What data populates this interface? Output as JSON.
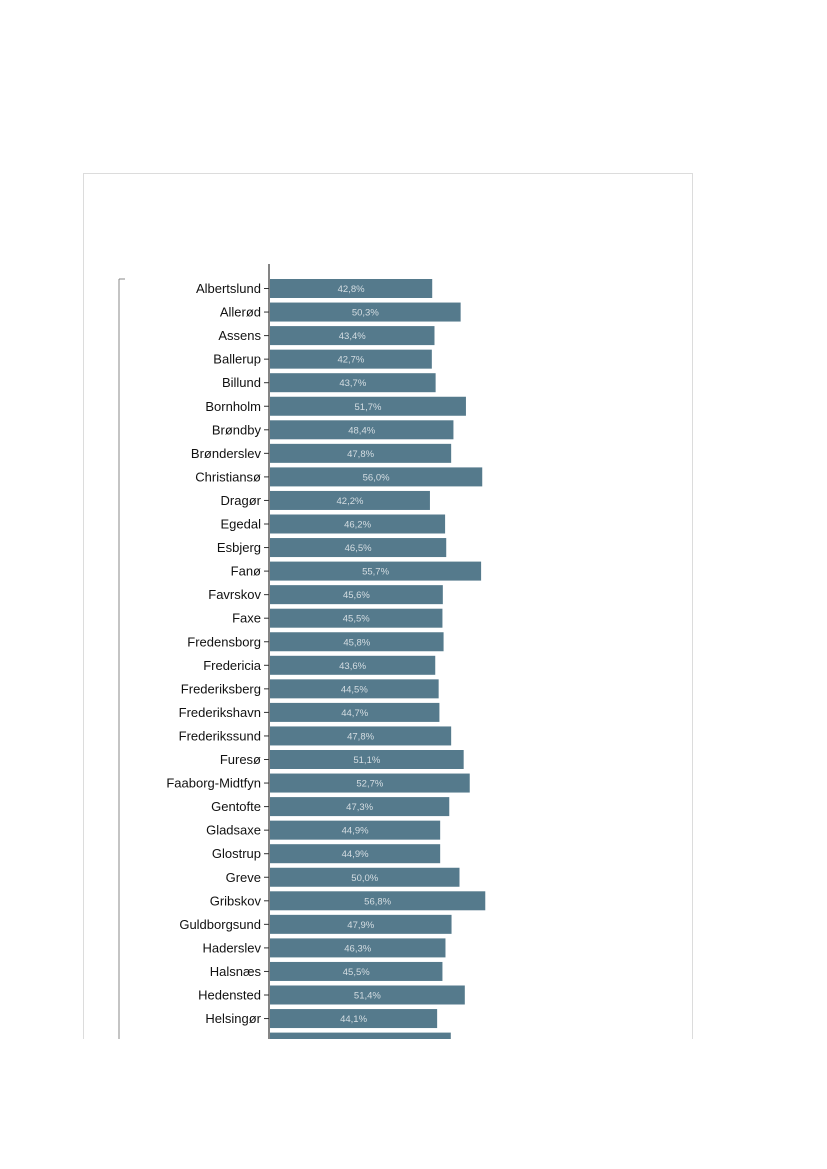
{
  "chart_data": {
    "type": "bar",
    "orientation": "horizontal",
    "colors": {
      "bar": "#557a8c",
      "value_label": "#d4dde2",
      "axis": "#333333",
      "text": "#111111"
    },
    "xlim": [
      0,
      85
    ],
    "categories": [
      "Albertslund",
      "Allerød",
      "Assens",
      "Ballerup",
      "Billund",
      "Bornholm",
      "Brøndby",
      "Brønderslev",
      "Christiansø",
      "Dragør",
      "Egedal",
      "Esbjerg",
      "Fanø",
      "Favrskov",
      "Faxe",
      "Fredensborg",
      "Fredericia",
      "Frederiksberg",
      "Frederikshavn",
      "Frederikssund",
      "Furesø",
      "Faaborg-Midtfyn",
      "Gentofte",
      "Gladsaxe",
      "Glostrup",
      "Greve",
      "Gribskov",
      "Guldborgsund",
      "Haderslev",
      "Halsnæs",
      "Hedensted",
      "Helsingør"
    ],
    "values": [
      42.8,
      50.3,
      43.4,
      42.7,
      43.7,
      51.7,
      48.4,
      47.8,
      56.0,
      42.2,
      46.2,
      46.5,
      55.7,
      45.6,
      45.5,
      45.8,
      43.6,
      44.5,
      44.7,
      47.8,
      51.1,
      52.7,
      47.3,
      44.9,
      44.9,
      50.0,
      56.8,
      47.9,
      46.3,
      45.5,
      51.4,
      44.1
    ],
    "value_labels": [
      "42,8%",
      "50,3%",
      "43,4%",
      "42,7%",
      "43,7%",
      "51,7%",
      "48,4%",
      "47,8%",
      "56,0%",
      "42,2%",
      "46,2%",
      "46,5%",
      "55,7%",
      "45,6%",
      "45,5%",
      "45,8%",
      "43,6%",
      "44,5%",
      "44,7%",
      "47,8%",
      "51,1%",
      "52,7%",
      "47,3%",
      "44,9%",
      "44,9%",
      "50,0%",
      "56,8%",
      "47,9%",
      "46,3%",
      "45,5%",
      "51,4%",
      "44,1%"
    ],
    "partial_next_value": 47.7
  }
}
